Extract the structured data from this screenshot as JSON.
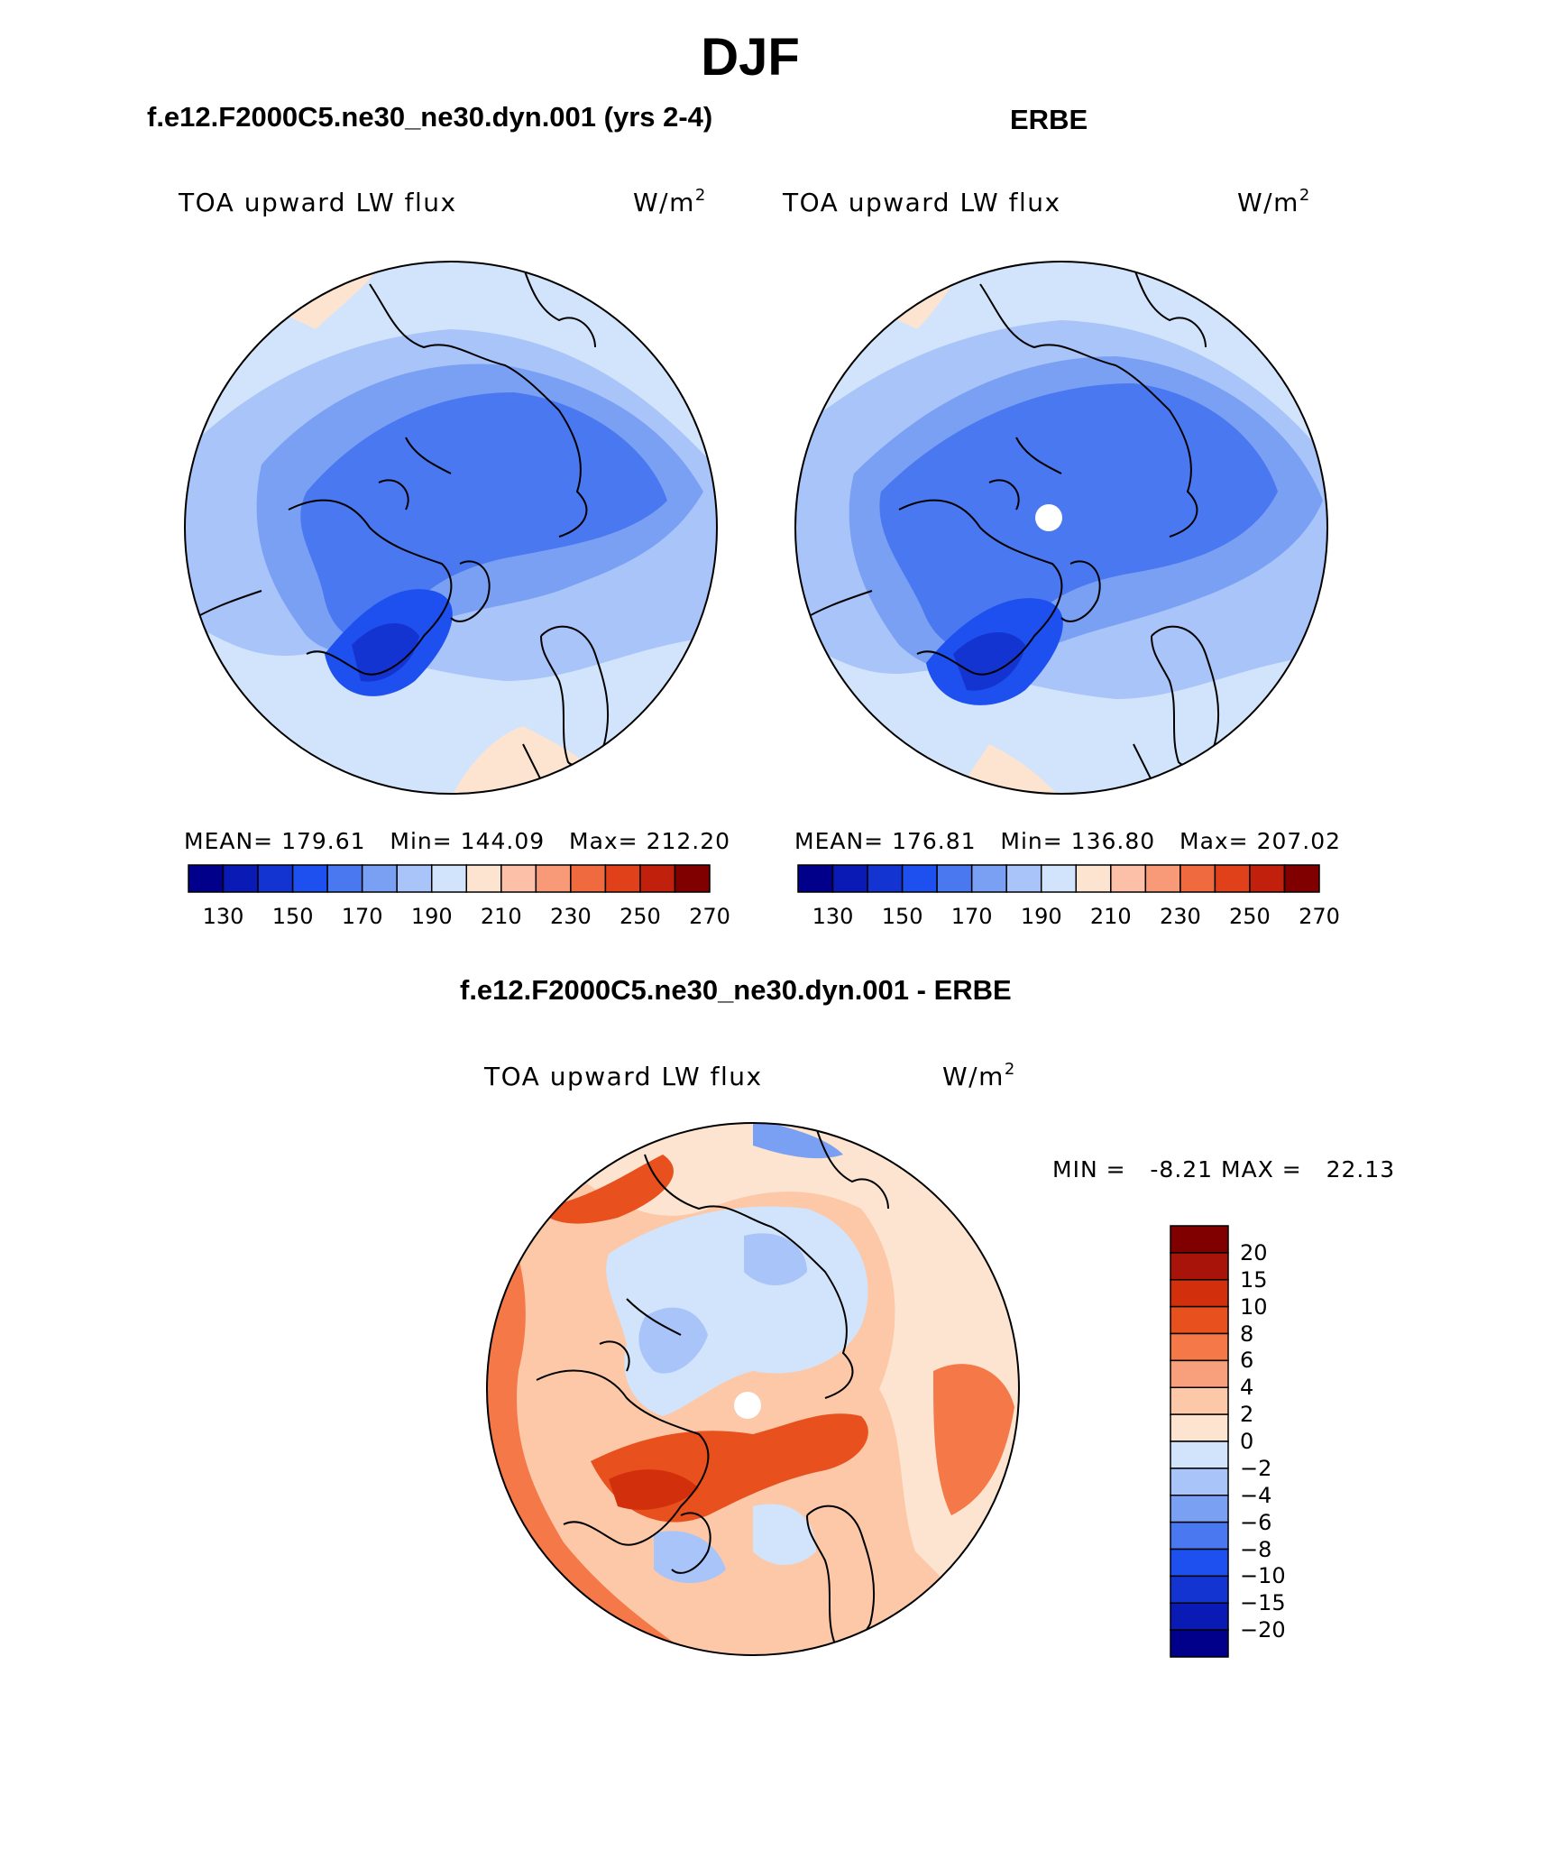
{
  "figure": {
    "title": "DJF",
    "units_base": "W/m",
    "units_exp": "2"
  },
  "panels": [
    {
      "id": "model",
      "title": "f.e12.F2000C5.ne30_ne30.dyn.001 (yrs 2-4)",
      "variable": "TOA upward LW flux",
      "mean_label": "MEAN=",
      "mean": "179.61",
      "min_label": "Min=",
      "min": "144.09",
      "max_label": "Max=",
      "max": "212.20"
    },
    {
      "id": "obs",
      "title": "ERBE",
      "variable": "TOA upward LW flux",
      "mean_label": "MEAN=",
      "mean": "176.81",
      "min_label": "Min=",
      "min": "136.80",
      "max_label": "Max=",
      "max": "207.02"
    }
  ],
  "diff_panel": {
    "title": "f.e12.F2000C5.ne30_ne30.dyn.001 - ERBE",
    "variable": "TOA upward LW flux",
    "min_label": "MIN =",
    "min": "-8.21",
    "max_label": "MAX =",
    "max": "22.13"
  },
  "abs_colorbar": {
    "colors": [
      "#00008b",
      "#0a1ab4",
      "#1434d2",
      "#1e50f0",
      "#4a78f0",
      "#7aa0f4",
      "#a8c4f8",
      "#d2e4fc",
      "#fde4d0",
      "#fcc0a8",
      "#f89a78",
      "#f06a40",
      "#e0401a",
      "#c0200c",
      "#800000"
    ],
    "tick_labels": [
      "130",
      "150",
      "170",
      "190",
      "210",
      "230",
      "250",
      "270"
    ]
  },
  "diff_colorbar": {
    "colors_top_to_bottom": [
      "#800000",
      "#a8140a",
      "#d2300c",
      "#e8501e",
      "#f47848",
      "#f8a07c",
      "#fcc8a8",
      "#fde4d0",
      "#d2e4fc",
      "#a8c4f8",
      "#7aa0f4",
      "#4a78f0",
      "#1e50f0",
      "#1434d2",
      "#0a1ab4",
      "#00008b"
    ],
    "tick_labels": [
      "20",
      "15",
      "10",
      "8",
      "6",
      "4",
      "2",
      "0",
      "−2",
      "−4",
      "−6",
      "−8",
      "−10",
      "−15",
      "−20"
    ]
  }
}
